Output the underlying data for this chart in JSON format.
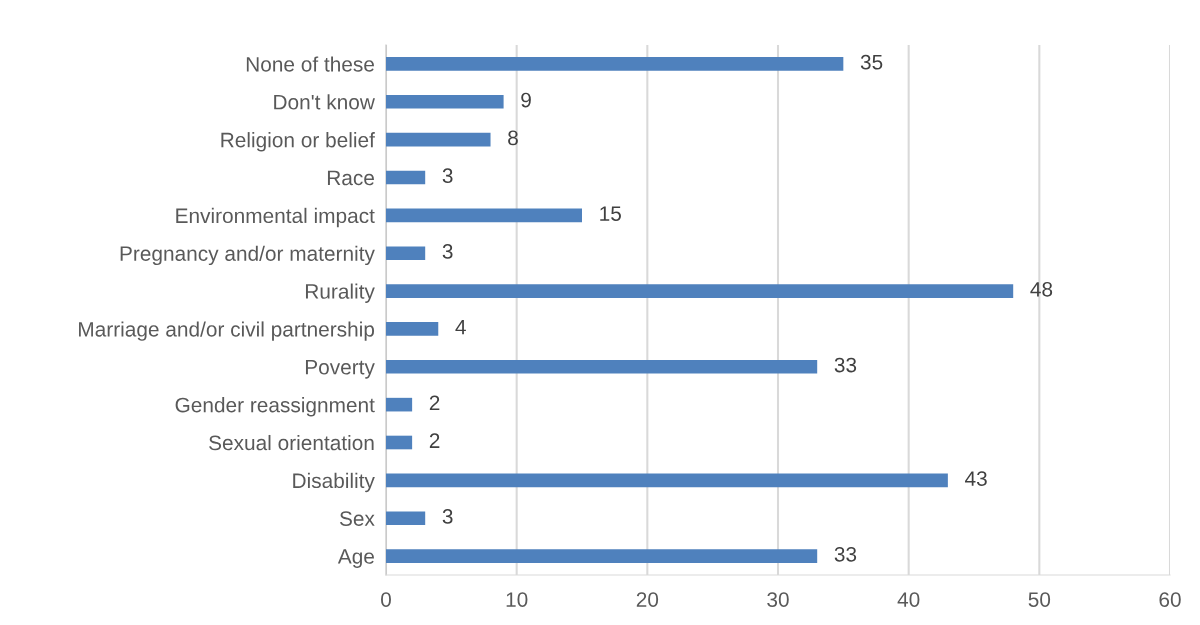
{
  "chart_data": {
    "type": "bar",
    "orientation": "horizontal",
    "categories": [
      "None of these",
      "Don't know",
      "Religion or belief",
      "Race",
      "Environmental impact",
      "Pregnancy and/or maternity",
      "Rurality",
      "Marriage and/or civil partnership",
      "Poverty",
      "Gender reassignment",
      "Sexual orientation",
      "Disability",
      "Sex",
      "Age"
    ],
    "values": [
      35,
      9,
      8,
      3,
      15,
      3,
      48,
      4,
      33,
      2,
      2,
      43,
      3,
      33
    ],
    "color": "#4f81bd",
    "xlim": [
      0,
      60
    ],
    "xticks": [
      0,
      10,
      20,
      30,
      40,
      50,
      60
    ],
    "grid": "x",
    "data_labels": true,
    "legend": false
  }
}
